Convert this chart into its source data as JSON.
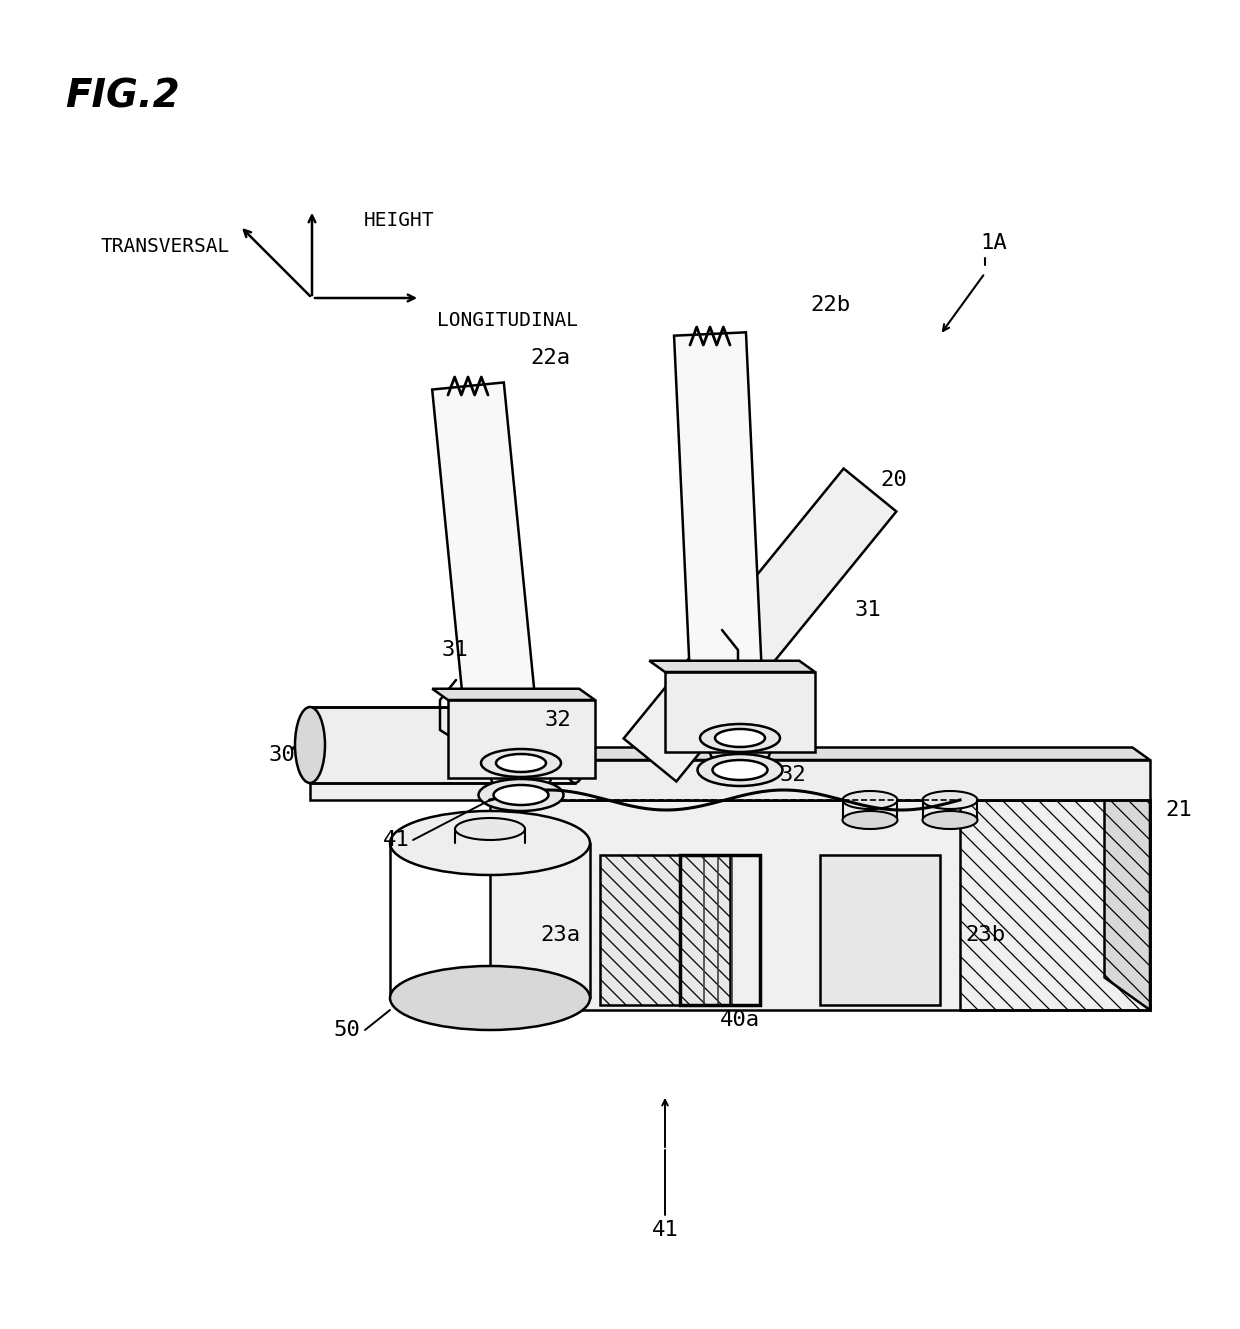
{
  "fig_title": "FIG.2",
  "bg_color": "#ffffff",
  "fig_width": 12.4,
  "fig_height": 13.29,
  "dpi": 100,
  "labels": {
    "fig_title": "FIG.2",
    "ref_1A": "1A",
    "ref_20": "20",
    "ref_21": "21",
    "ref_22a": "22a",
    "ref_22b": "22b",
    "ref_23a": "23a",
    "ref_23b": "23b",
    "ref_30": "30",
    "ref_31": "31",
    "ref_32": "32",
    "ref_40a": "40a",
    "ref_41": "41",
    "ref_50": "50",
    "dir_height": "HEIGHT",
    "dir_transversal": "TRANSVERSAL",
    "dir_longitudinal": "LONGITUDINAL"
  },
  "colors": {
    "line": "#000000",
    "fill_light": "#f8f8f8",
    "fill_mid": "#e8e8e8",
    "fill_dark": "#d0d0d0",
    "fill_darker": "#b8b8b8",
    "white": "#ffffff"
  }
}
